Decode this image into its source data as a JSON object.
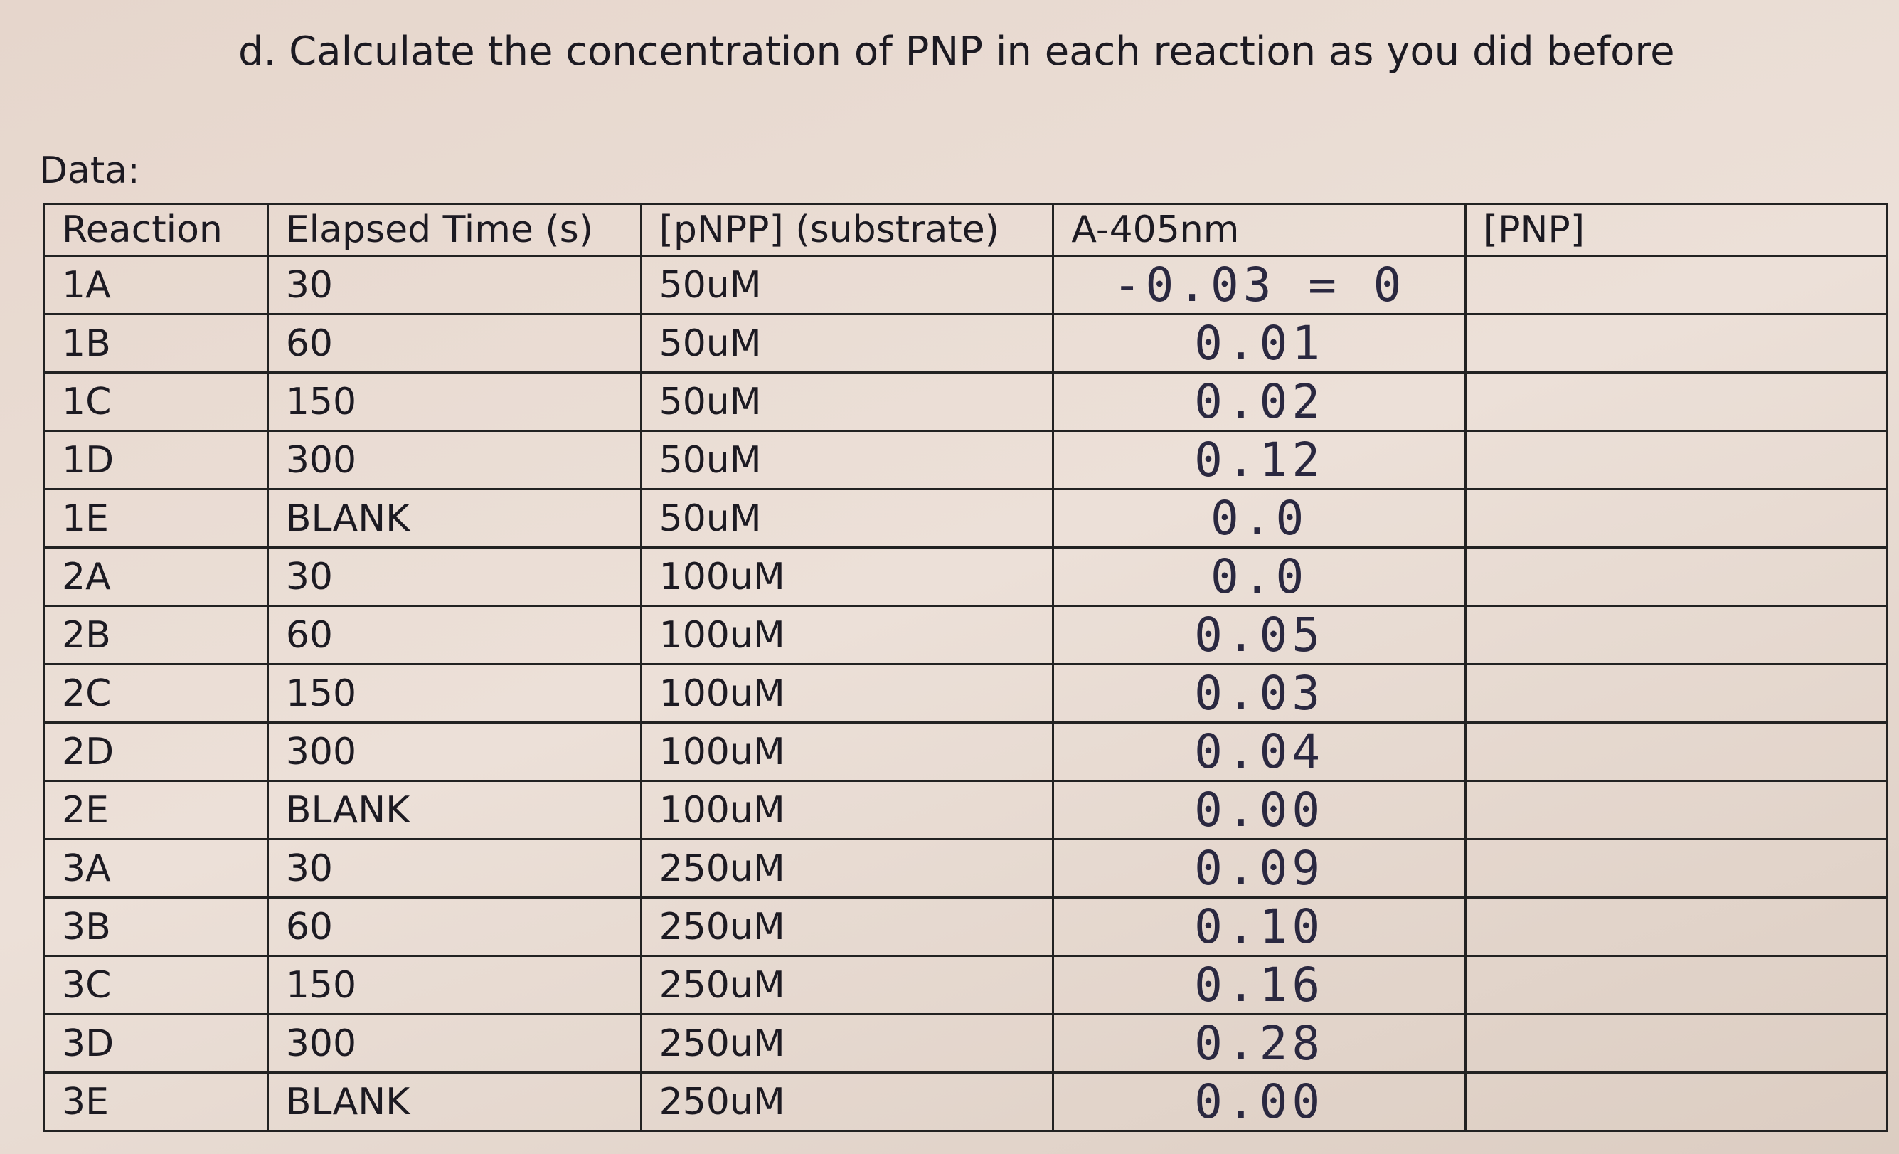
{
  "instruction": "d. Calculate the concentration of PNP in each reaction as you did before",
  "data_label": "Data:",
  "table": {
    "headers": [
      "Reaction",
      "Elapsed Time (s)",
      "[pNPP] (substrate)",
      "A-405nm",
      "[PNP]"
    ],
    "rows": [
      [
        "1A",
        "30",
        "50uM",
        "-0.03 = 0"
      ],
      [
        "1B",
        "60",
        "50uM",
        "0.01"
      ],
      [
        "1C",
        "150",
        "50uM",
        "0.02"
      ],
      [
        "1D",
        "300",
        "50uM",
        "0.12"
      ],
      [
        "1E",
        "BLANK",
        "50uM",
        "0.0"
      ],
      [
        "2A",
        "30",
        "100uM",
        "0.0"
      ],
      [
        "2B",
        "60",
        "100uM",
        "0.05"
      ],
      [
        "2C",
        "150",
        "100uM",
        "0.03"
      ],
      [
        "2D",
        "300",
        "100uM",
        "0.04"
      ],
      [
        "2E",
        "BLANK",
        "100uM",
        "0.00"
      ],
      [
        "3A",
        "30",
        "250uM",
        "0.09"
      ],
      [
        "3B",
        "60",
        "250uM",
        "0.10"
      ],
      [
        "3C",
        "150",
        "250uM",
        "0.16"
      ],
      [
        "3D",
        "300",
        "250uM",
        "0.28"
      ],
      [
        "3E",
        "BLANK",
        "250uM",
        "0.00"
      ]
    ]
  }
}
